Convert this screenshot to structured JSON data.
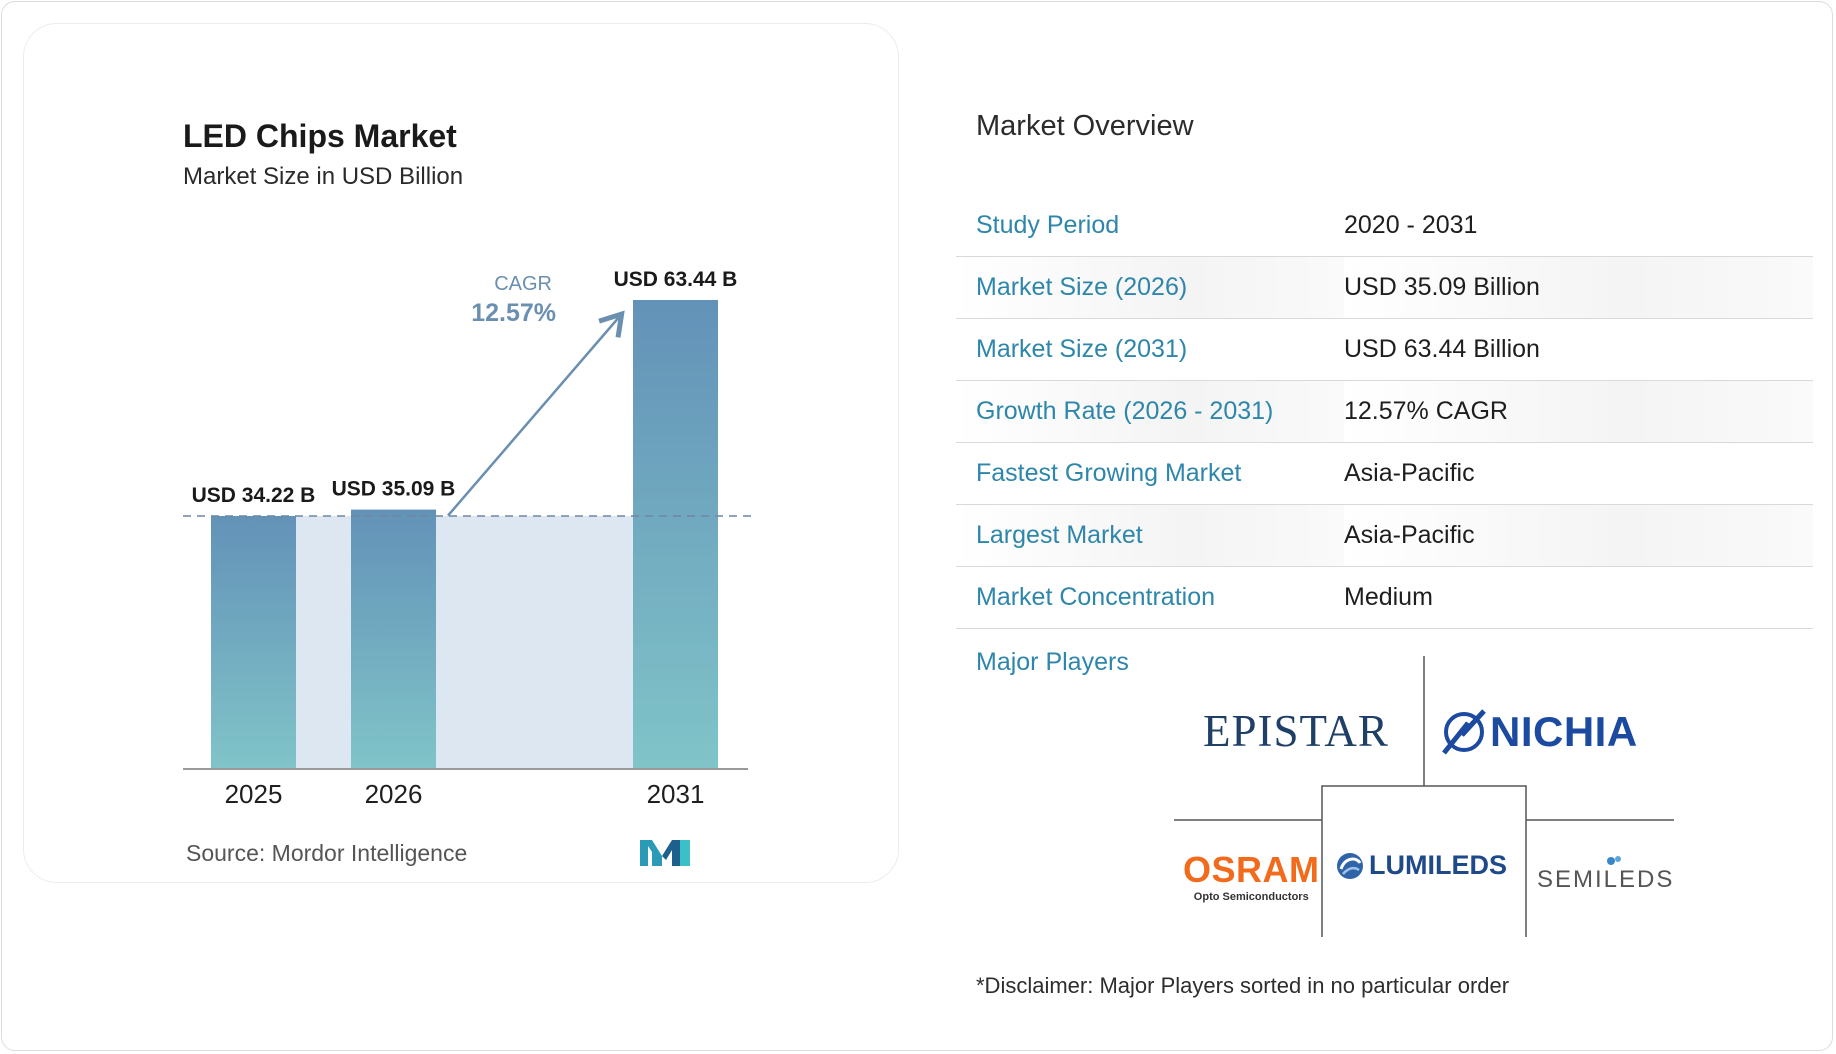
{
  "chart_data": {
    "type": "bar",
    "title": "LED Chips Market",
    "subtitle": "Market Size in USD Billion",
    "categories": [
      "2025",
      "2026",
      "2031"
    ],
    "values": [
      34.22,
      35.09,
      63.44
    ],
    "data_labels": [
      "USD 34.22 B",
      "USD 35.09 B",
      "USD 63.44 B"
    ],
    "cagr_label": "CAGR",
    "cagr_value": "12.57%",
    "bar_color_top": "#6392b8",
    "bar_color_bottom": "#80c4c8",
    "baseline_fill": "#dde7f1",
    "arrow_color": "#6a8fb0"
  },
  "source": {
    "label": "Source:",
    "name": "Mordor Intelligence"
  },
  "overview": {
    "title": "Market Overview",
    "rows": [
      {
        "label": "Study Period",
        "value": "2020 - 2031"
      },
      {
        "label": "Market Size (2026)",
        "value": "USD 35.09 Billion"
      },
      {
        "label": "Market Size (2031)",
        "value": "USD 63.44 Billion"
      },
      {
        "label": "Growth Rate (2026 - 2031)",
        "value": "12.57% CAGR"
      },
      {
        "label": "Fastest Growing Market",
        "value": "Asia-Pacific"
      },
      {
        "label": "Largest Market",
        "value": "Asia-Pacific"
      },
      {
        "label": "Market Concentration",
        "value": "Medium"
      }
    ]
  },
  "players": {
    "label": "Major Players",
    "epistar": "EPISTAR",
    "nichia": "NICHIA",
    "osram": "OSRAM",
    "osram_sub": "Opto Semiconductors",
    "lumileds": "LUMILEDS",
    "semileds": "SEMILEDS"
  },
  "disclaimer": "*Disclaimer: Major Players sorted in no particular order"
}
